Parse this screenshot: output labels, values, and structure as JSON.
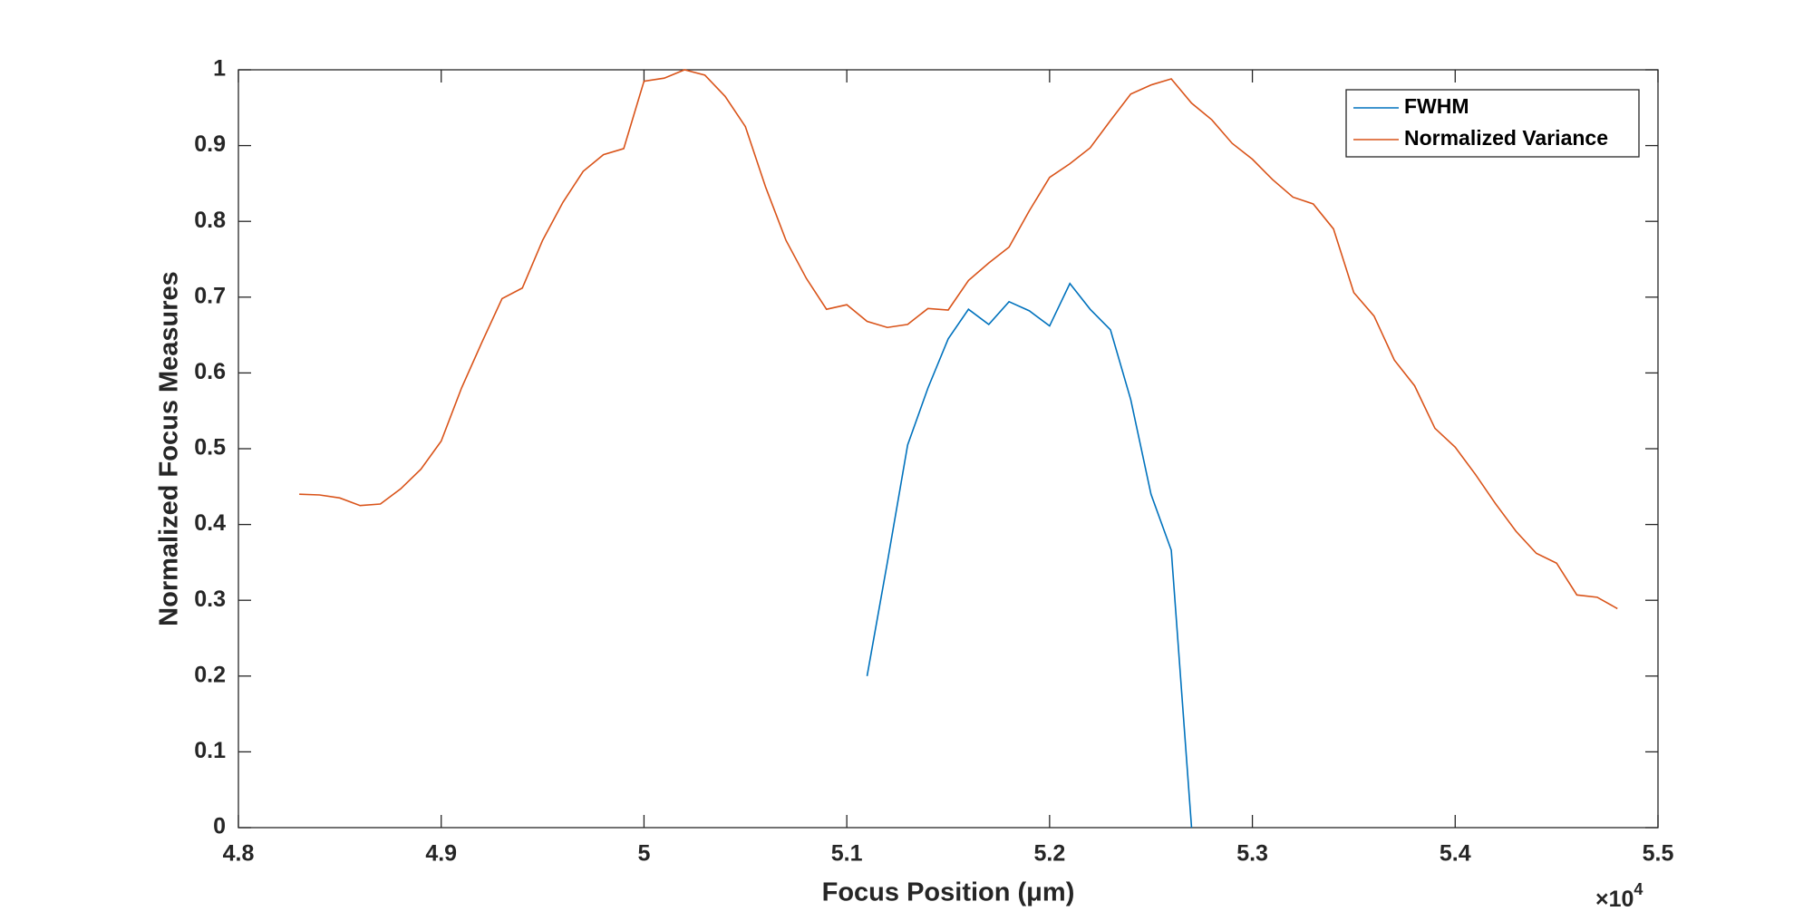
{
  "chart_data": {
    "type": "line",
    "xlabel": "Focus Position (μm)",
    "ylabel": "Normalized Focus Measures",
    "x_multiplier": {
      "base": "×10",
      "exponent": "4"
    },
    "x": [
      48300,
      48400,
      48500,
      48600,
      48700,
      48800,
      48900,
      49000,
      49100,
      49200,
      49300,
      49400,
      49500,
      49600,
      49700,
      49800,
      49900,
      50000,
      50100,
      50200,
      50300,
      50400,
      50500,
      50600,
      50700,
      50800,
      50900,
      51000,
      51100,
      51200,
      51300,
      51400,
      51500,
      51600,
      51700,
      51800,
      51900,
      52000,
      52100,
      52200,
      52300,
      52400,
      52500,
      52600,
      52700,
      52800,
      52900,
      53000,
      53100,
      53200,
      53300,
      53400,
      53500,
      53600,
      53700,
      53800,
      53900,
      54000,
      54100,
      54200,
      54300,
      54400,
      54500,
      54600,
      54700,
      54800
    ],
    "series": [
      {
        "name": "FWHM",
        "color": "#0072bd",
        "values": [
          null,
          null,
          null,
          null,
          null,
          null,
          null,
          null,
          null,
          null,
          null,
          null,
          null,
          null,
          null,
          null,
          null,
          null,
          null,
          null,
          null,
          null,
          null,
          null,
          null,
          null,
          null,
          null,
          0.2,
          0.35,
          0.505,
          0.58,
          0.645,
          0.684,
          0.664,
          0.694,
          0.682,
          0.662,
          0.718,
          0.684,
          0.657,
          0.565,
          0.44,
          0.366,
          0,
          null,
          null,
          null,
          null,
          null,
          null,
          null,
          null,
          null,
          null,
          null,
          null,
          null,
          null,
          null,
          null,
          null,
          null,
          null,
          null,
          null
        ]
      },
      {
        "name": "Normalized Variance",
        "color": "#d95319",
        "values": [
          0.44,
          0.439,
          0.435,
          0.425,
          0.427,
          0.447,
          0.473,
          0.51,
          0.58,
          0.64,
          0.698,
          0.712,
          0.775,
          0.825,
          0.866,
          0.888,
          0.896,
          0.985,
          0.989,
          1.0,
          0.993,
          0.965,
          0.925,
          0.845,
          0.775,
          0.725,
          0.684,
          0.69,
          0.668,
          0.66,
          0.664,
          0.685,
          0.683,
          0.722,
          0.745,
          0.766,
          0.814,
          0.858,
          0.876,
          0.897,
          0.933,
          0.968,
          0.98,
          0.988,
          0.956,
          0.934,
          0.903,
          0.882,
          0.855,
          0.832,
          0.823,
          0.79,
          0.706,
          0.675,
          0.617,
          0.583,
          0.527,
          0.502,
          0.466,
          0.427,
          0.391,
          0.362,
          0.349,
          0.307,
          0.304,
          0.289
        ]
      }
    ],
    "xlim": [
      48000,
      55000
    ],
    "xticks": [
      {
        "value": 48000,
        "label": "4.8"
      },
      {
        "value": 49000,
        "label": "4.9"
      },
      {
        "value": 50000,
        "label": "5"
      },
      {
        "value": 51000,
        "label": "5.1"
      },
      {
        "value": 52000,
        "label": "5.2"
      },
      {
        "value": 53000,
        "label": "5.3"
      },
      {
        "value": 54000,
        "label": "5.4"
      },
      {
        "value": 55000,
        "label": "5.5"
      }
    ],
    "ylim": [
      0,
      1
    ],
    "yticks": [
      0,
      0.1,
      0.2,
      0.3,
      0.4,
      0.5,
      0.6,
      0.7,
      0.8,
      0.9,
      1
    ],
    "legend": "northeast"
  }
}
